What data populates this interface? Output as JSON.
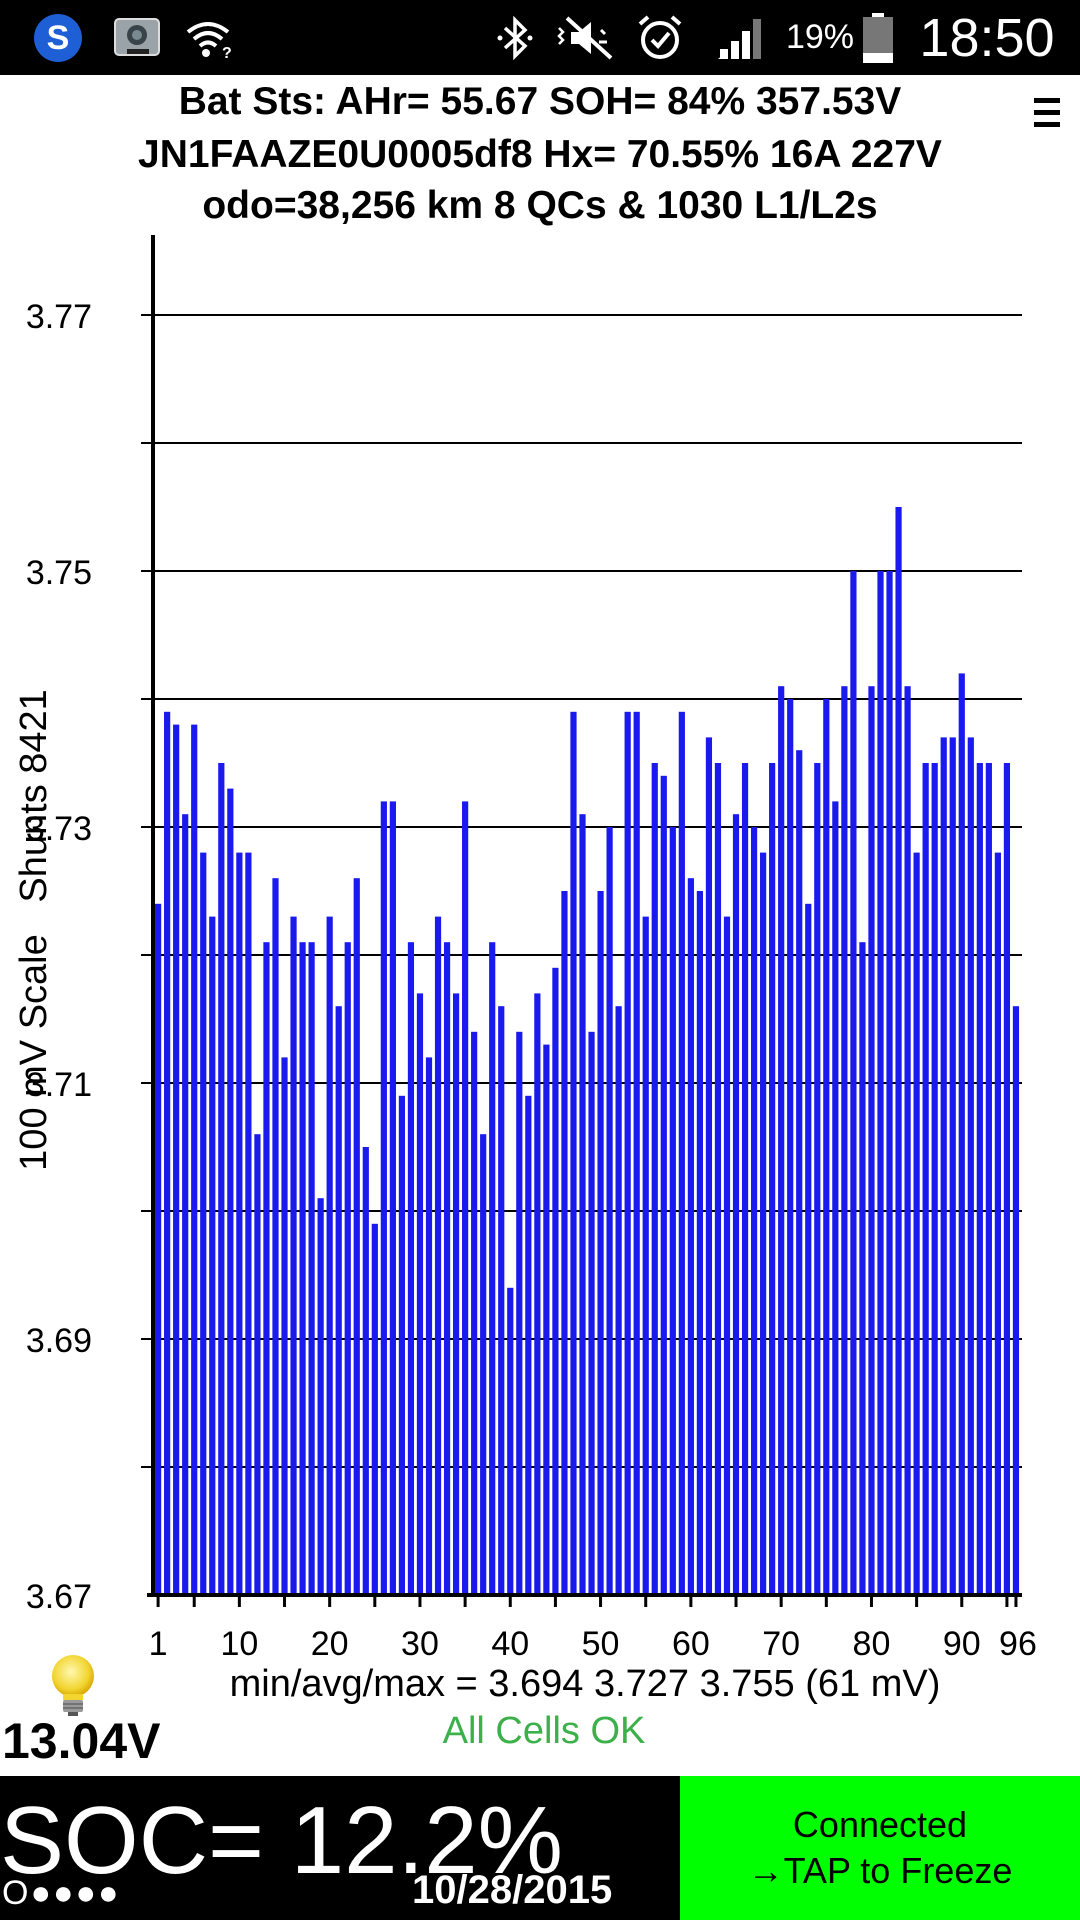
{
  "status_bar": {
    "icons": [
      "s-app-icon",
      "dashcam-icon",
      "wifi-icon",
      "bluetooth-icon",
      "vibrate-mute-icon",
      "alarm-icon",
      "signal-icon",
      "battery-icon"
    ],
    "battery_percent": "19%",
    "time": "18:50"
  },
  "header": {
    "line1": "Bat Sts: AHr= 55.67 SOH= 84% 357.53V",
    "line2": "JN1FAAZE0U0005df8   Hx= 70.55% 16A 227V",
    "line3": "odo=38,256 km 8 QCs & 1030 L1/L2s",
    "menu_icon": "hamburger-menu-icon"
  },
  "chart_data": {
    "type": "bar",
    "ylabel": "100 mV Scale   Shunts 8421",
    "ylim": [
      3.67,
      3.77
    ],
    "y_tick_labels": [
      "3.77",
      "3.75",
      "3.73",
      "3.71",
      "3.69",
      "3.67"
    ],
    "x_tick_labels": [
      "1",
      "10",
      "20",
      "30",
      "40",
      "50",
      "60",
      "70",
      "80",
      "90",
      "96"
    ],
    "bar_color": "#1a1aee",
    "grid": true,
    "x": [
      1,
      2,
      3,
      4,
      5,
      6,
      7,
      8,
      9,
      10,
      11,
      12,
      13,
      14,
      15,
      16,
      17,
      18,
      19,
      20,
      21,
      22,
      23,
      24,
      25,
      26,
      27,
      28,
      29,
      30,
      31,
      32,
      33,
      34,
      35,
      36,
      37,
      38,
      39,
      40,
      41,
      42,
      43,
      44,
      45,
      46,
      47,
      48,
      49,
      50,
      51,
      52,
      53,
      54,
      55,
      56,
      57,
      58,
      59,
      60,
      61,
      62,
      63,
      64,
      65,
      66,
      67,
      68,
      69,
      70,
      71,
      72,
      73,
      74,
      75,
      76,
      77,
      78,
      79,
      80,
      81,
      82,
      83,
      84,
      85,
      86,
      87,
      88,
      89,
      90,
      91,
      92,
      93,
      94,
      95,
      96
    ],
    "values": [
      3.724,
      3.739,
      3.738,
      3.731,
      3.738,
      3.728,
      3.723,
      3.735,
      3.733,
      3.728,
      3.728,
      3.706,
      3.721,
      3.726,
      3.712,
      3.723,
      3.721,
      3.721,
      3.701,
      3.723,
      3.716,
      3.721,
      3.726,
      3.705,
      3.699,
      3.732,
      3.732,
      3.709,
      3.721,
      3.717,
      3.712,
      3.723,
      3.721,
      3.717,
      3.732,
      3.714,
      3.706,
      3.721,
      3.716,
      3.694,
      3.714,
      3.709,
      3.717,
      3.713,
      3.719,
      3.725,
      3.739,
      3.731,
      3.714,
      3.725,
      3.73,
      3.716,
      3.739,
      3.739,
      3.723,
      3.735,
      3.734,
      3.73,
      3.739,
      3.726,
      3.725,
      3.737,
      3.735,
      3.723,
      3.731,
      3.735,
      3.73,
      3.728,
      3.735,
      3.741,
      3.74,
      3.736,
      3.724,
      3.735,
      3.74,
      3.732,
      3.741,
      3.75,
      3.721,
      3.741,
      3.75,
      3.75,
      3.755,
      3.741,
      3.728,
      3.735,
      3.735,
      3.737,
      3.737,
      3.742,
      3.737,
      3.735,
      3.735,
      3.728,
      3.735,
      3.716
    ]
  },
  "stats": {
    "minmax_text": "min/avg/max = 3.694 3.727 3.755  (61 mV)",
    "cells_status": "All Cells OK"
  },
  "bottom": {
    "voltage": "13.04V",
    "soc": "SOC= 12.2%",
    "dots": "O●●●●",
    "date": "10/28/2015",
    "connect_line1": "Connected",
    "connect_line2": "→TAP to Freeze",
    "bulb_icon": "lightbulb-icon"
  }
}
